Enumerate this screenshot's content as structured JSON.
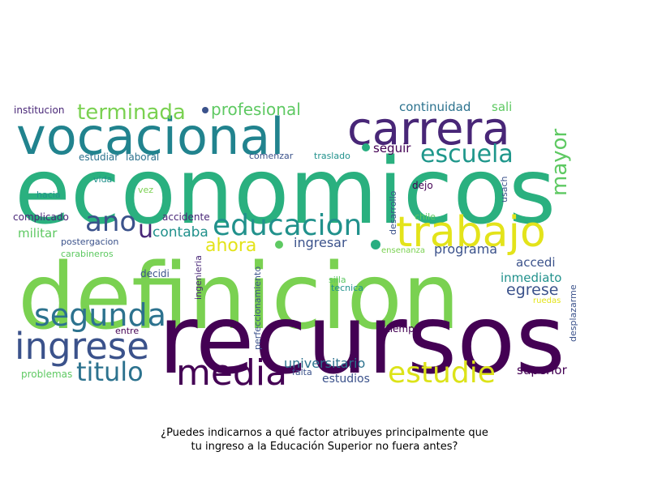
{
  "caption": {
    "line1": "¿Puedes indicarnos a qué factor atribuyes principalmente que",
    "line2": "tu ingreso a la Educación Superior no fuera antes?"
  },
  "palette": {
    "dark_purple": "#440154",
    "indigo": "#472f7d",
    "slate_blue": "#3b528b",
    "steel": "#31688e",
    "teal": "#21918c",
    "sea_green": "#28ae80",
    "green": "#5ec962",
    "lime": "#7ad151",
    "yellow": "#e3e31a"
  },
  "words": [
    {
      "id": "economicos",
      "text": "economicos",
      "color": "#2ab07f"
    },
    {
      "id": "definicion",
      "text": "definicion",
      "color": "#7ad151"
    },
    {
      "id": "recursos",
      "text": "recursos",
      "color": "#440154"
    },
    {
      "id": "vocacional",
      "text": "vocacional",
      "color": "#21838e"
    },
    {
      "id": "carrera",
      "text": "carrera",
      "color": "#482677"
    },
    {
      "id": "trabajo",
      "text": "trabajo",
      "color": "#e3e31a"
    },
    {
      "id": "ingrese",
      "text": "ingrese",
      "color": "#3b528b"
    },
    {
      "id": "media",
      "text": "media",
      "color": "#440154"
    },
    {
      "id": "segunda",
      "text": "segunda",
      "color": "#2c728e"
    },
    {
      "id": "educacion",
      "text": "educacion",
      "color": "#21918c"
    },
    {
      "id": "estudie",
      "text": "estudie",
      "color": "#dce319"
    },
    {
      "id": "titulo",
      "text": "titulo",
      "color": "#2c728e"
    },
    {
      "id": "escuela",
      "text": "escuela",
      "color": "#1f978b"
    },
    {
      "id": "terminada",
      "text": "terminada",
      "color": "#7ad151"
    },
    {
      "id": "ano",
      "text": "ano",
      "color": "#3b528b"
    },
    {
      "id": "mayor",
      "text": "mayor",
      "color": "#5ec962"
    },
    {
      "id": "profesional",
      "text": "profesional",
      "color": "#5ec962"
    },
    {
      "id": "ahora",
      "text": "ahora",
      "color": "#e3e31a"
    },
    {
      "id": "u",
      "text": "u",
      "color": "#482677"
    },
    {
      "id": "contaba",
      "text": "contaba",
      "color": "#21918c"
    },
    {
      "id": "continuidad",
      "text": "continuidad",
      "color": "#2c728e"
    },
    {
      "id": "sali",
      "text": "sali",
      "color": "#5ec962"
    },
    {
      "id": "universitario",
      "text": "universitario",
      "color": "#2c728e"
    },
    {
      "id": "egrese",
      "text": "egrese",
      "color": "#3b528b"
    },
    {
      "id": "programa",
      "text": "programa",
      "color": "#3b528b"
    },
    {
      "id": "ingresar",
      "text": "ingresar",
      "color": "#3b528b"
    },
    {
      "id": "seguir",
      "text": "seguir",
      "color": "#440154"
    },
    {
      "id": "militar",
      "text": "militar",
      "color": "#5ec962"
    },
    {
      "id": "inmediato",
      "text": "inmediato",
      "color": "#21918c"
    },
    {
      "id": "accedi",
      "text": "accedi",
      "color": "#3b528b"
    },
    {
      "id": "superior",
      "text": "superior",
      "color": "#440154"
    },
    {
      "id": "estudios",
      "text": "estudios",
      "color": "#3b528b"
    },
    {
      "id": "institucion",
      "text": "institucion",
      "color": "#482677"
    },
    {
      "id": "estudiar",
      "text": "estudiar",
      "color": "#2c728e"
    },
    {
      "id": "laboral",
      "text": "laboral",
      "color": "#2c728e"
    },
    {
      "id": "comenzar",
      "text": "comenzar",
      "color": "#3b528b"
    },
    {
      "id": "traslado",
      "text": "traslado",
      "color": "#21918c"
    },
    {
      "id": "vida",
      "text": "vida",
      "color": "#21918c"
    },
    {
      "id": "hacia",
      "text": "hacia",
      "color": "#21918c"
    },
    {
      "id": "vez",
      "text": "vez",
      "color": "#7ad151"
    },
    {
      "id": "complicado",
      "text": "complicado",
      "color": "#482677"
    },
    {
      "id": "accidente",
      "text": "accidente",
      "color": "#482677"
    },
    {
      "id": "postergacion",
      "text": "postergacion",
      "color": "#3b528b"
    },
    {
      "id": "carabineros",
      "text": "carabineros",
      "color": "#5ec962"
    },
    {
      "id": "decidi",
      "text": "decidi",
      "color": "#3b528b"
    },
    {
      "id": "ingenieria",
      "text": "ingenieria",
      "color": "#482677"
    },
    {
      "id": "perfeccionamiento",
      "text": "perfeccionamiento",
      "color": "#3b528b"
    },
    {
      "id": "desarrollo",
      "text": "desarrollo",
      "color": "#3b528b"
    },
    {
      "id": "dejo",
      "text": "dejo",
      "color": "#440154"
    },
    {
      "id": "usach",
      "text": "usach",
      "color": "#3b528b"
    },
    {
      "id": "chile",
      "text": "chile",
      "color": "#5ec962"
    },
    {
      "id": "ensenanza",
      "text": "ensenanza",
      "color": "#7ad151"
    },
    {
      "id": "silla",
      "text": "silla",
      "color": "#5ec962"
    },
    {
      "id": "tecnica",
      "text": "tecnica",
      "color": "#21918c"
    },
    {
      "id": "ruedas",
      "text": "ruedas",
      "color": "#e3e31a"
    },
    {
      "id": "entre",
      "text": "entre",
      "color": "#440154"
    },
    {
      "id": "tiempo",
      "text": "tiempo",
      "color": "#440154"
    },
    {
      "id": "desplazarme",
      "text": "desplazarme",
      "color": "#3b528b"
    },
    {
      "id": "falta",
      "text": "falta",
      "color": "#3b528b"
    },
    {
      "id": "problemas",
      "text": "problemas",
      "color": "#5ec962"
    }
  ]
}
